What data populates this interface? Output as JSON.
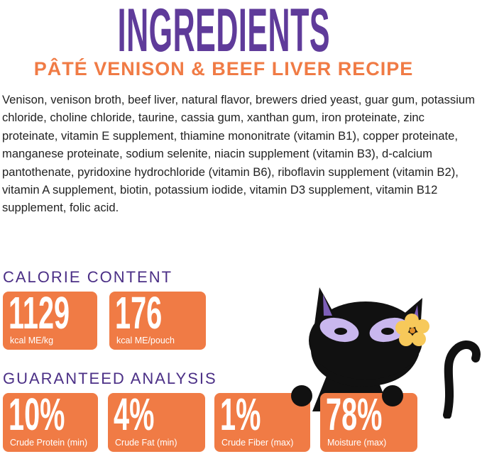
{
  "header": {
    "title": "INGREDIENTS",
    "subtitle": "PÂTÉ VENISON & BEEF LIVER RECIPE"
  },
  "ingredients": "Venison, venison broth, beef liver, natural flavor, brewers dried yeast, guar gum, potassium chloride, choline chloride, taurine, cassia gum, xanthan gum, iron proteinate, zinc proteinate, vitamin E supplement, thiamine mononitrate (vitamin B1), copper proteinate, manganese proteinate, sodium selenite, niacin supplement (vitamin B3), d-calcium pantothenate, pyridoxine hydrochloride (vitamin B6), riboflavin supplement (vitamin B2), vitamin A supplement, biotin, potassium iodide, vitamin D3 supplement, vitamin B12 supplement, folic acid.",
  "calorie": {
    "heading": "CALORIE CONTENT",
    "items": [
      {
        "value": "1129",
        "label": "kcal ME/kg"
      },
      {
        "value": "176",
        "label": "kcal ME/pouch"
      }
    ]
  },
  "analysis": {
    "heading": "GUARANTEED ANALYSIS",
    "items": [
      {
        "value": "10%",
        "label": "Crude Protein (min)"
      },
      {
        "value": "4%",
        "label": "Crude Fat (min)"
      },
      {
        "value": "1%",
        "label": "Crude Fiber (max)"
      },
      {
        "value": "78%",
        "label": "Moisture (max)"
      }
    ]
  },
  "colors": {
    "purple": "#5f3b9a",
    "orange": "#f07b45"
  },
  "illustration": "black-cat-with-flower"
}
